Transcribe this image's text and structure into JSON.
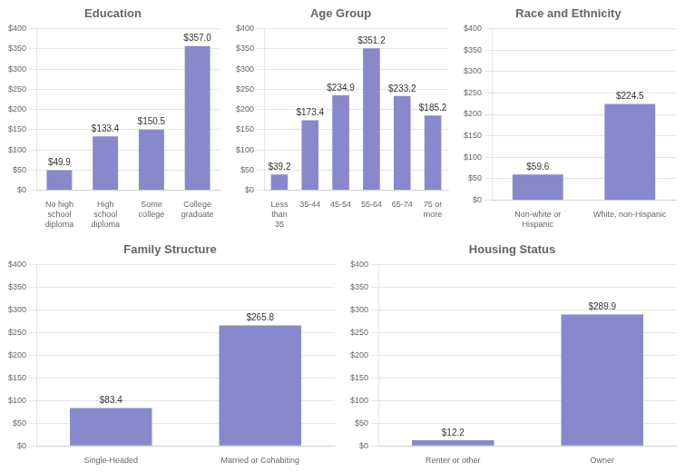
{
  "chart_data": [
    {
      "type": "bar",
      "title": "Education",
      "categories": [
        "No high\nschool\ndiploma",
        "High\nschool\ndiploma",
        "Some\ncollege",
        "College\ngraduate"
      ],
      "values": [
        49.9,
        133.4,
        150.5,
        357.0
      ],
      "value_labels": [
        "$49.9",
        "$133.4",
        "$150.5",
        "$357.0"
      ],
      "data_labels": true,
      "color": "#8888cc",
      "ylim": [
        0,
        400
      ],
      "yticks": [
        {
          "value": 0,
          "label": "$0"
        },
        {
          "value": 50,
          "label": "$50"
        },
        {
          "value": 100,
          "label": "$100"
        },
        {
          "value": 150,
          "label": "$150"
        },
        {
          "value": 200,
          "label": "$200"
        },
        {
          "value": 250,
          "label": "$250"
        },
        {
          "value": 300,
          "label": "$300"
        },
        {
          "value": 350,
          "label": "$350"
        },
        {
          "value": 400,
          "label": "$400"
        }
      ],
      "grid": true
    },
    {
      "type": "bar",
      "title": "Age Group",
      "categories": [
        "Less\nthan\n35",
        "35-44",
        "45-54",
        "55-64",
        "65-74",
        "75 or\nmore"
      ],
      "values": [
        39.2,
        173.4,
        234.9,
        351.2,
        233.2,
        185.2
      ],
      "value_labels": [
        "$39.2",
        "$173.4",
        "$234.9",
        "$351.2",
        "$233.2",
        "$185.2"
      ],
      "data_labels": true,
      "color": "#8888cc",
      "ylim": [
        0,
        400
      ],
      "yticks": [
        {
          "value": 0,
          "label": "$0"
        },
        {
          "value": 50,
          "label": "$50"
        },
        {
          "value": 100,
          "label": "$100"
        },
        {
          "value": 150,
          "label": "$150"
        },
        {
          "value": 200,
          "label": "$200"
        },
        {
          "value": 250,
          "label": "$250"
        },
        {
          "value": 300,
          "label": "$300"
        },
        {
          "value": 350,
          "label": "$350"
        },
        {
          "value": 400,
          "label": "$400"
        }
      ],
      "grid": true
    },
    {
      "type": "bar",
      "title": "Race and Ethnicity",
      "categories": [
        "Non-white or\nHispanic",
        "White, non-Hispanic"
      ],
      "values": [
        59.6,
        224.5
      ],
      "value_labels": [
        "$59.6",
        "$224.5"
      ],
      "data_labels": true,
      "color": "#8888cc",
      "ylim": [
        0,
        400
      ],
      "yticks": [
        {
          "value": 0,
          "label": "$0"
        },
        {
          "value": 50,
          "label": "$50"
        },
        {
          "value": 100,
          "label": "$100"
        },
        {
          "value": 150,
          "label": "$150"
        },
        {
          "value": 200,
          "label": "$200"
        },
        {
          "value": 250,
          "label": "$250"
        },
        {
          "value": 300,
          "label": "$300"
        },
        {
          "value": 350,
          "label": "$350"
        },
        {
          "value": 400,
          "label": "$400"
        }
      ],
      "grid": true
    },
    {
      "type": "bar",
      "title": "Family Structure",
      "categories": [
        "Single-Headed",
        "Married or Cohabiting"
      ],
      "values": [
        83.4,
        265.8
      ],
      "value_labels": [
        "$83.4",
        "$265.8"
      ],
      "data_labels": true,
      "color": "#8888cc",
      "ylim": [
        0,
        400
      ],
      "yticks": [
        {
          "value": 0,
          "label": "$0"
        },
        {
          "value": 50,
          "label": "$50"
        },
        {
          "value": 100,
          "label": "$100"
        },
        {
          "value": 150,
          "label": "$150"
        },
        {
          "value": 200,
          "label": "$200"
        },
        {
          "value": 250,
          "label": "$250"
        },
        {
          "value": 300,
          "label": "$300"
        },
        {
          "value": 350,
          "label": "$350"
        },
        {
          "value": 400,
          "label": "$400"
        }
      ],
      "grid": true
    },
    {
      "type": "bar",
      "title": "Housing Status",
      "categories": [
        "Renter or other",
        "Owner"
      ],
      "values": [
        12.2,
        289.9
      ],
      "value_labels": [
        "$12.2",
        "$289.9"
      ],
      "data_labels": true,
      "color": "#8888cc",
      "ylim": [
        0,
        400
      ],
      "yticks": [
        {
          "value": 0,
          "label": "$0"
        },
        {
          "value": 50,
          "label": "$50"
        },
        {
          "value": 100,
          "label": "$100"
        },
        {
          "value": 150,
          "label": "$150"
        },
        {
          "value": 200,
          "label": "$200"
        },
        {
          "value": 250,
          "label": "$250"
        },
        {
          "value": 300,
          "label": "$300"
        },
        {
          "value": 350,
          "label": "$350"
        },
        {
          "value": 400,
          "label": "$400"
        }
      ],
      "grid": true
    }
  ]
}
